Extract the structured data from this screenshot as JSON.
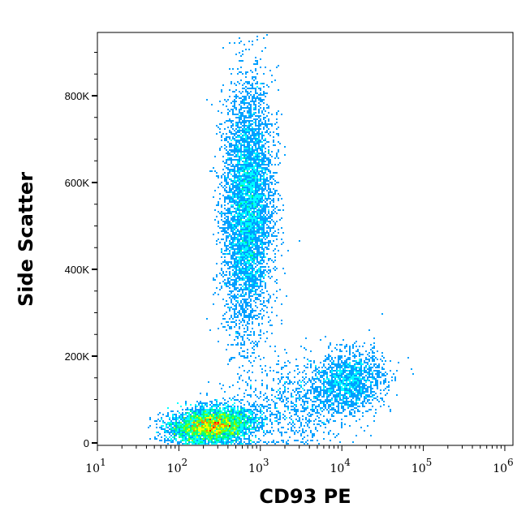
{
  "chart_data": {
    "type": "scatter",
    "subtype": "density-dot-plot",
    "xlabel": "CD93 PE",
    "ylabel": "Side Scatter",
    "x_scale": "log",
    "xlim": [
      10,
      1000000
    ],
    "ylim": [
      0,
      950000
    ],
    "x_ticks": [
      {
        "value": 10,
        "base": "10",
        "exp": "1"
      },
      {
        "value": 100,
        "base": "10",
        "exp": "2"
      },
      {
        "value": 1000,
        "base": "10",
        "exp": "3"
      },
      {
        "value": 10000,
        "base": "10",
        "exp": "4"
      },
      {
        "value": 100000,
        "base": "10",
        "exp": "5"
      },
      {
        "value": 1000000,
        "base": "10",
        "exp": "6"
      }
    ],
    "y_ticks": [
      {
        "value": 0,
        "label": "0"
      },
      {
        "value": 200000,
        "label": "200K"
      },
      {
        "value": 400000,
        "label": "400K"
      },
      {
        "value": 600000,
        "label": "600K"
      },
      {
        "value": 800000,
        "label": "800K"
      }
    ],
    "grid": false,
    "colormap": [
      "#0000ff",
      "#00a0ff",
      "#00ffff",
      "#00ff80",
      "#80ff00",
      "#ffff00",
      "#ff8000",
      "#ff0000"
    ],
    "populations": [
      {
        "x_center": 250,
        "y_center": 40000,
        "x_sd_decades": 0.25,
        "y_sd": 20000,
        "count": 7000
      },
      {
        "x_center": 700,
        "y_center": 540000,
        "x_sd_decades": 0.15,
        "y_sd": 140000,
        "count": 5500
      },
      {
        "x_center": 12000,
        "y_center": 140000,
        "x_sd_decades": 0.22,
        "y_sd": 35000,
        "count": 1500
      },
      {
        "x_center": 2500,
        "y_center": 90000,
        "x_sd_decades": 0.4,
        "y_sd": 50000,
        "count": 900
      }
    ]
  }
}
